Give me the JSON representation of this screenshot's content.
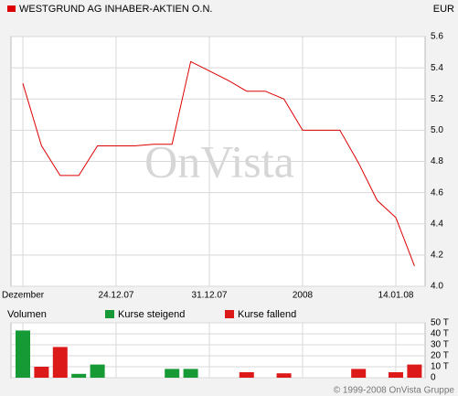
{
  "chart_data": [
    {
      "type": "line",
      "title": "WESTGRUND AG INHABER-AKTIEN O.N.",
      "currency": "EUR",
      "watermark": "OnVista",
      "color": "#dd0000",
      "grid": true,
      "categories": [
        "Dezember",
        null,
        null,
        null,
        null,
        "24.12.07",
        null,
        null,
        null,
        null,
        "31.12.07",
        null,
        null,
        null,
        null,
        "2008",
        null,
        null,
        null,
        null,
        "14.01.08",
        null
      ],
      "values": [
        5.3,
        4.9,
        4.71,
        4.71,
        4.9,
        4.9,
        4.9,
        4.91,
        4.91,
        5.44,
        5.38,
        5.32,
        5.25,
        5.25,
        5.2,
        5.0,
        5.0,
        5.0,
        4.79,
        4.55,
        4.44,
        4.13
      ],
      "ylim": [
        4.0,
        5.6
      ],
      "yticks": [
        {
          "value": 4.0,
          "label": "4.0"
        },
        4.2,
        4.4,
        4.6,
        4.8,
        {
          "value": 5.0,
          "label": "5.0"
        },
        5.2,
        5.4,
        5.6
      ]
    },
    {
      "type": "bar",
      "title": "Volumen",
      "grid": true,
      "series": [
        {
          "name": "Kurse steigend",
          "color": "#159a35",
          "values": [
            43,
            null,
            null,
            3.5,
            12,
            null,
            null,
            null,
            8,
            8,
            null,
            null,
            null,
            null,
            null,
            null,
            null,
            null,
            null,
            null,
            null,
            null
          ]
        },
        {
          "name": "Kurse fallend",
          "color": "#dd1a1a",
          "values": [
            null,
            10,
            28,
            null,
            null,
            null,
            null,
            null,
            null,
            null,
            null,
            null,
            5,
            null,
            4,
            null,
            null,
            null,
            8,
            null,
            5,
            12
          ]
        }
      ],
      "ylim": [
        0,
        50
      ],
      "yticks": [
        0,
        {
          "value": 10,
          "label": "10 T"
        },
        {
          "value": 20,
          "label": "20 T"
        },
        {
          "value": 30,
          "label": "30 T"
        },
        {
          "value": 40,
          "label": "40 T"
        },
        {
          "value": 50,
          "label": "50 T"
        }
      ]
    }
  ],
  "footer": "© 1999-2008 OnVista Gruppe"
}
